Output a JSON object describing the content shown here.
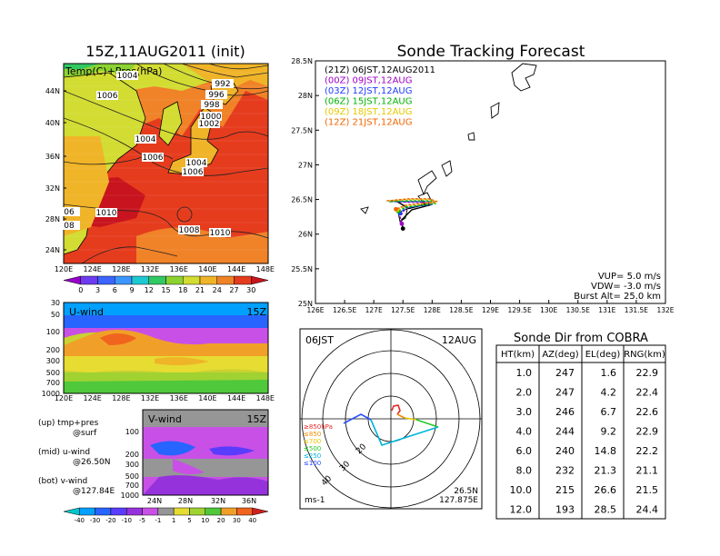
{
  "left": {
    "map_title": "15Z,11AUG2011 (init)",
    "map_label": "Temp(C)+Pres(hPa)",
    "map_lat_ticks": [
      "44N",
      "40N",
      "36N",
      "32N",
      "28N",
      "24N"
    ],
    "map_lon_ticks": [
      "120E",
      "124E",
      "128E",
      "132E",
      "136E",
      "140E",
      "144E",
      "148E"
    ],
    "isobar_labels": [
      "1004",
      "1006",
      "992",
      "996",
      "998",
      "1000",
      "1002",
      "1004",
      "1006",
      "1004",
      "1006",
      "1010",
      "1008",
      "1010",
      "06",
      "08"
    ],
    "temp_colorbar": {
      "labels": [
        "0",
        "3",
        "6",
        "9",
        "12",
        "15",
        "18",
        "21",
        "24",
        "27",
        "30"
      ],
      "colors": [
        "#9600c8",
        "#6e3cf0",
        "#3c64ff",
        "#3c96ff",
        "#1ec8d2",
        "#32c864",
        "#8cd232",
        "#d2dc32",
        "#f0b428",
        "#f08228",
        "#e63c1e",
        "#c8141e"
      ]
    },
    "u_panel": {
      "label": "U-wind",
      "time": "15Z",
      "y_ticks": [
        "30",
        "50",
        "100",
        "200",
        "300",
        "500",
        "700",
        "1000"
      ],
      "x_ticks": [
        "120E",
        "124E",
        "128E",
        "132E",
        "136E",
        "140E",
        "144E",
        "148E"
      ]
    },
    "v_panel": {
      "label": "V-wind",
      "time": "15Z",
      "y_ticks": [
        "100",
        "200",
        "300",
        "500",
        "700",
        "1000"
      ],
      "x_ticks": [
        "24N",
        "28N",
        "32N",
        "36N"
      ]
    },
    "legend_text": {
      "up": "(up) tmp+pres",
      "up2": "@surf",
      "mid": "(mid) u-wind",
      "mid2": "@26.50N",
      "bot": "(bot) v-wind",
      "bot2": "@127.84E"
    },
    "wind_colorbar": {
      "labels": [
        "-40",
        "-30",
        "-20",
        "-10",
        "-5",
        "-1",
        "1",
        "5",
        "10",
        "20",
        "30",
        "40"
      ],
      "colors": [
        "#00c8c8",
        "#00a0ff",
        "#2864ff",
        "#5a3cff",
        "#9632dc",
        "#c850e6",
        "#969696",
        "#e6dc32",
        "#a0d232",
        "#50c83c",
        "#f0a028",
        "#f0641e",
        "#d21e1e"
      ]
    }
  },
  "track": {
    "title": "Sonde Tracking Forecast",
    "lat_ticks": [
      "28.5N",
      "28N",
      "27.5N",
      "27N",
      "26.5N",
      "26N",
      "25.5N",
      "25N"
    ],
    "lon_ticks": [
      "126E",
      "126.5E",
      "127E",
      "127.5E",
      "128E",
      "128.5E",
      "129E",
      "129.5E",
      "130E",
      "130.5E",
      "131E",
      "131.5E",
      "132E"
    ],
    "legend": [
      {
        "text": "(21Z)  06JST,12AUG2011",
        "color": "#000000"
      },
      {
        "text": "(00Z)  09JST,12AUG",
        "color": "#a000c8"
      },
      {
        "text": "(03Z)  12JST,12AUG",
        "color": "#1e3cff"
      },
      {
        "text": "(06Z)  15JST,12AUG",
        "color": "#00b400"
      },
      {
        "text": "(09Z)  18JST,12AUG",
        "color": "#e6c800"
      },
      {
        "text": "(12Z)  21JST,12AUG",
        "color": "#f06400"
      }
    ],
    "params": {
      "vup": "VUP=  5.0  m/s",
      "vdw": "VDW=  -3.0  m/s",
      "burst": "Burst Alt=  25.0  km"
    }
  },
  "polar": {
    "top_left": "06JST",
    "top_right": "12AUG",
    "ring_labels": [
      "20",
      "30",
      "40"
    ],
    "legend": [
      {
        "text": "≥850hPa",
        "color": "#e62828"
      },
      {
        "text": "≤850",
        "color": "#f08c00"
      },
      {
        "text": "≤700",
        "color": "#e6c800"
      },
      {
        "text": "≤500",
        "color": "#28c828"
      },
      {
        "text": "≤250",
        "color": "#00b4dc"
      },
      {
        "text": "≤100",
        "color": "#2850ff"
      }
    ],
    "unit": "ms-1",
    "loc_lat": "26.5N",
    "loc_lon": "127.875E"
  },
  "table": {
    "title": "Sonde Dir from COBRA",
    "headers": [
      "HT(km)",
      "AZ(deg)",
      "EL(deg)",
      "RNG(km)"
    ],
    "rows": [
      [
        "1.0",
        "247",
        "1.6",
        "22.9"
      ],
      [
        "2.0",
        "247",
        "4.2",
        "22.4"
      ],
      [
        "3.0",
        "246",
        "6.7",
        "22.6"
      ],
      [
        "4.0",
        "244",
        "9.2",
        "22.9"
      ],
      [
        "6.0",
        "240",
        "14.8",
        "22.2"
      ],
      [
        "8.0",
        "232",
        "21.3",
        "21.1"
      ],
      [
        "10.0",
        "215",
        "26.6",
        "21.5"
      ],
      [
        "12.0",
        "193",
        "28.5",
        "24.4"
      ]
    ]
  },
  "chart_data": [
    {
      "type": "heatmap",
      "title": "15Z,11AUG2011 (init)",
      "label": "Temp(C)+Pres(hPa)",
      "isobars_hPa": [
        992,
        996,
        998,
        1000,
        1002,
        1004,
        1006,
        1008,
        1010
      ],
      "colorbar_C": [
        0,
        3,
        6,
        9,
        12,
        15,
        18,
        21,
        24,
        27,
        30
      ]
    },
    {
      "type": "heatmap",
      "label": "U-wind",
      "time": "15Z",
      "location": "@26.50N",
      "ylim_hPa": [
        1000,
        30
      ]
    },
    {
      "type": "heatmap",
      "label": "V-wind",
      "time": "15Z",
      "location": "@127.84E",
      "ylim_hPa": [
        1000,
        100
      ]
    },
    {
      "type": "line",
      "title": "Sonde Tracking Forecast",
      "xlim": [
        126,
        132
      ],
      "ylim": [
        25,
        28.5
      ],
      "series": [
        {
          "name": "(21Z)  06JST,12AUG2011",
          "color": "#000000",
          "points": [
            [
              127.38,
              26.48
            ],
            [
              127.48,
              26.43
            ],
            [
              127.6,
              26.37
            ],
            [
              127.75,
              26.4
            ],
            [
              127.9,
              26.44
            ],
            [
              127.96,
              26.42
            ],
            [
              127.65,
              26.35
            ],
            [
              127.47,
              26.2
            ],
            [
              127.5,
              26.08
            ]
          ]
        },
        {
          "name": "(00Z)  09JST,12AUG",
          "color": "#a000c8",
          "points": [
            [
              127.3,
              26.48
            ],
            [
              127.55,
              26.46
            ],
            [
              127.85,
              26.46
            ],
            [
              128.0,
              26.44
            ],
            [
              127.55,
              26.38
            ],
            [
              127.45,
              26.25
            ],
            [
              127.48,
              26.15
            ]
          ]
        },
        {
          "name": "(03Z)  12JST,12AUG",
          "color": "#1e3cff",
          "points": [
            [
              127.28,
              26.47
            ],
            [
              127.6,
              26.47
            ],
            [
              127.95,
              26.47
            ],
            [
              128.02,
              26.43
            ],
            [
              127.55,
              26.38
            ],
            [
              127.45,
              26.3
            ]
          ]
        },
        {
          "name": "(06Z)  15JST,12AUG",
          "color": "#00b400",
          "points": [
            [
              127.26,
              26.47
            ],
            [
              127.6,
              26.48
            ],
            [
              127.98,
              26.48
            ],
            [
              128.05,
              26.44
            ],
            [
              127.55,
              26.39
            ],
            [
              127.42,
              26.33
            ]
          ]
        },
        {
          "name": "(09Z)  18JST,12AUG",
          "color": "#e6c800",
          "points": [
            [
              127.24,
              26.48
            ],
            [
              127.6,
              26.5
            ],
            [
              127.95,
              26.5
            ],
            [
              128.07,
              26.46
            ],
            [
              127.55,
              26.41
            ],
            [
              127.4,
              26.35
            ]
          ]
        },
        {
          "name": "(12Z)  21JST,12AUG",
          "color": "#f06400",
          "points": [
            [
              127.22,
              26.48
            ],
            [
              127.6,
              26.51
            ],
            [
              127.95,
              26.51
            ],
            [
              128.09,
              26.47
            ],
            [
              127.55,
              26.42
            ],
            [
              127.38,
              26.36
            ]
          ]
        }
      ]
    },
    {
      "type": "table",
      "title": "Sonde Dir from COBRA",
      "columns": [
        "HT(km)",
        "AZ(deg)",
        "EL(deg)",
        "RNG(km)"
      ],
      "rows": [
        [
          1.0,
          247,
          1.6,
          22.9
        ],
        [
          2.0,
          247,
          4.2,
          22.4
        ],
        [
          3.0,
          246,
          6.7,
          22.6
        ],
        [
          4.0,
          244,
          9.2,
          22.9
        ],
        [
          6.0,
          240,
          14.8,
          22.2
        ],
        [
          8.0,
          232,
          21.3,
          21.1
        ],
        [
          10.0,
          215,
          26.6,
          21.5
        ],
        [
          12.0,
          193,
          28.5,
          24.4
        ]
      ]
    }
  ]
}
